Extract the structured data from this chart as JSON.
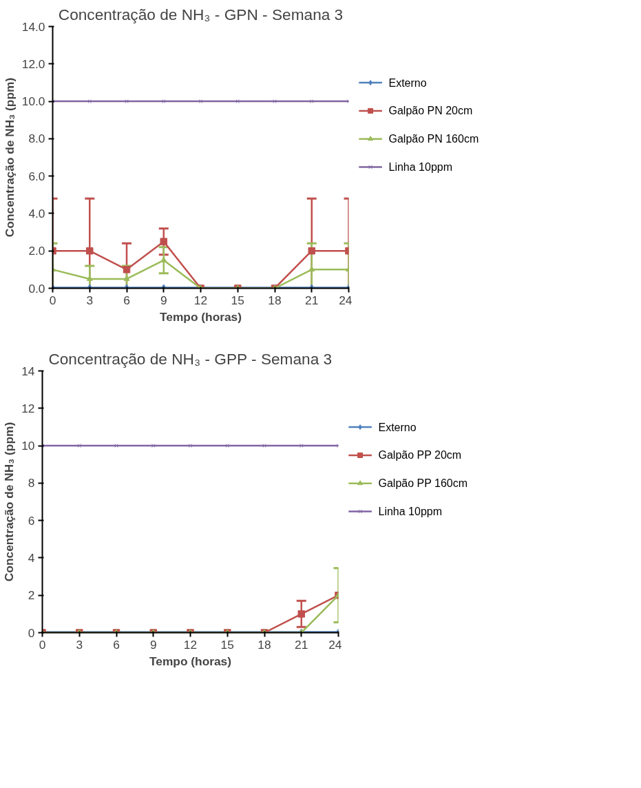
{
  "chart_data": [
    {
      "type": "line",
      "title": "Concentração de NH₃ - GPN - Semana 3",
      "xlabel": "Tempo (horas)",
      "ylabel": "Concentração de NH₃ (ppm)",
      "x": [
        0,
        3,
        6,
        9,
        12,
        15,
        18,
        21,
        24
      ],
      "xlim": [
        0,
        24
      ],
      "xticks": [
        0,
        3,
        6,
        9,
        12,
        15,
        18,
        21,
        24
      ],
      "ylim": [
        0,
        14
      ],
      "yticks": [
        {
          "value": 0,
          "label": "0.0"
        },
        {
          "value": 2,
          "label": "2.0"
        },
        {
          "value": 4,
          "label": "4.0"
        },
        {
          "value": 6,
          "label": "6.0"
        },
        {
          "value": 8,
          "label": "8.0"
        },
        {
          "value": 10,
          "label": "10.0"
        },
        {
          "value": 12,
          "label": "12.0"
        },
        {
          "value": 14,
          "label": "14.0"
        }
      ],
      "grid": false,
      "legend": "right",
      "series": [
        {
          "name": "Externo",
          "color": "#4f81bd",
          "marker": "diamond",
          "values": [
            0,
            0,
            0,
            0,
            0,
            0,
            0,
            0,
            0
          ]
        },
        {
          "name": "Galpão PN 20cm",
          "color": "#c0504d",
          "marker": "square",
          "values": [
            2,
            2,
            1,
            2.5,
            0,
            0,
            0,
            2,
            2
          ],
          "errors": [
            [
              0,
              4.8
            ],
            [
              0,
              4.8
            ],
            [
              0,
              2.4
            ],
            [
              1.8,
              3.2
            ],
            null,
            null,
            null,
            [
              0,
              4.8
            ],
            [
              0,
              4.8
            ]
          ]
        },
        {
          "name": "Galpão PN 160cm",
          "color": "#9bbb59",
          "marker": "triangle",
          "values": [
            1,
            0.5,
            0.5,
            1.5,
            0,
            0,
            0,
            1,
            1
          ],
          "errors": [
            [
              0,
              2.4
            ],
            [
              0,
              1.2
            ],
            [
              0,
              1.2
            ],
            [
              0.8,
              2.2
            ],
            null,
            null,
            null,
            [
              0,
              2.4
            ],
            [
              0,
              2.4
            ]
          ]
        },
        {
          "name": "Linha 10ppm",
          "color": "#8064a2",
          "marker": "cross",
          "values": [
            10,
            10,
            10,
            10,
            10,
            10,
            10,
            10,
            10
          ]
        }
      ]
    },
    {
      "type": "line",
      "title": "Concentração de NH₃ - GPP - Semana 3",
      "xlabel": "Tempo (horas)",
      "ylabel": "Concentração de NH₃ (ppm)",
      "x": [
        0,
        3,
        6,
        9,
        12,
        15,
        18,
        21,
        24
      ],
      "xlim": [
        0,
        24
      ],
      "xticks": [
        0,
        3,
        6,
        9,
        12,
        15,
        18,
        21,
        24
      ],
      "ylim": [
        0,
        14
      ],
      "yticks": [
        0,
        2,
        4,
        6,
        8,
        10,
        12,
        14
      ],
      "grid": false,
      "legend": "right",
      "series": [
        {
          "name": "Externo",
          "color": "#4f81bd",
          "marker": "diamond",
          "values": [
            0,
            0,
            0,
            0,
            0,
            0,
            0,
            0,
            0
          ]
        },
        {
          "name": "Galpão PP 20cm",
          "color": "#c0504d",
          "marker": "square",
          "values": [
            0,
            0,
            0,
            0,
            0,
            0,
            0,
            1,
            2
          ],
          "errors": [
            null,
            null,
            null,
            null,
            null,
            null,
            null,
            [
              0.3,
              1.7
            ],
            null
          ]
        },
        {
          "name": "Galpão PP 160cm",
          "color": "#9bbb59",
          "marker": "triangle",
          "values": [
            0,
            0,
            0,
            0,
            0,
            0,
            0,
            0,
            2
          ],
          "errors": [
            null,
            null,
            null,
            null,
            null,
            null,
            null,
            null,
            [
              0.55,
              3.45
            ]
          ]
        },
        {
          "name": "Linha 10ppm",
          "color": "#8064a2",
          "marker": "cross",
          "values": [
            10,
            10,
            10,
            10,
            10,
            10,
            10,
            10,
            10
          ]
        }
      ]
    }
  ]
}
